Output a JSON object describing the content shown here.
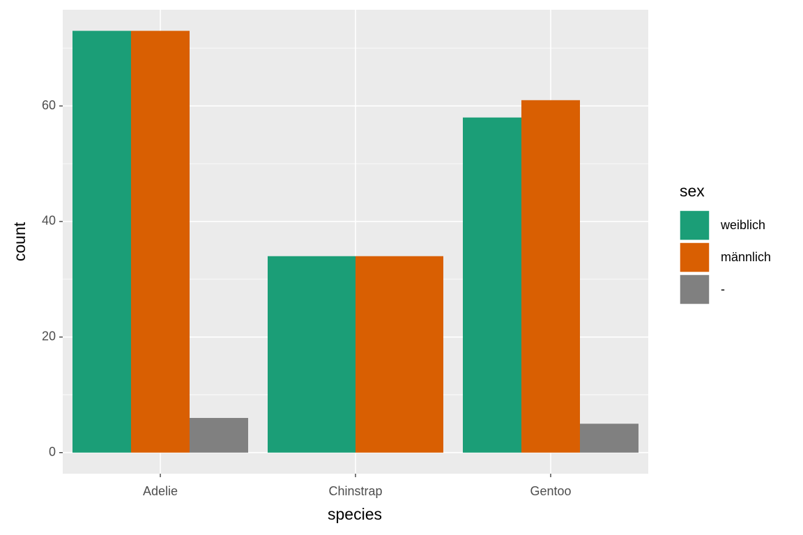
{
  "chart_data": {
    "type": "bar",
    "categories": [
      "Adelie",
      "Chinstrap",
      "Gentoo"
    ],
    "series": [
      {
        "name": "weiblich",
        "color": "#1b9e77",
        "values": [
          73,
          34,
          58
        ]
      },
      {
        "name": "männlich",
        "color": "#d95f02",
        "values": [
          73,
          34,
          61
        ]
      },
      {
        "name": "-",
        "color": "#808080",
        "values": [
          6,
          null,
          5
        ]
      }
    ],
    "ylim": [
      -3.65,
      76.65
    ],
    "yticks": [
      0,
      20,
      40,
      60
    ],
    "grid": true,
    "x_label": "species",
    "y_label": "count",
    "legend_title": "sex",
    "legend_position": "right"
  }
}
